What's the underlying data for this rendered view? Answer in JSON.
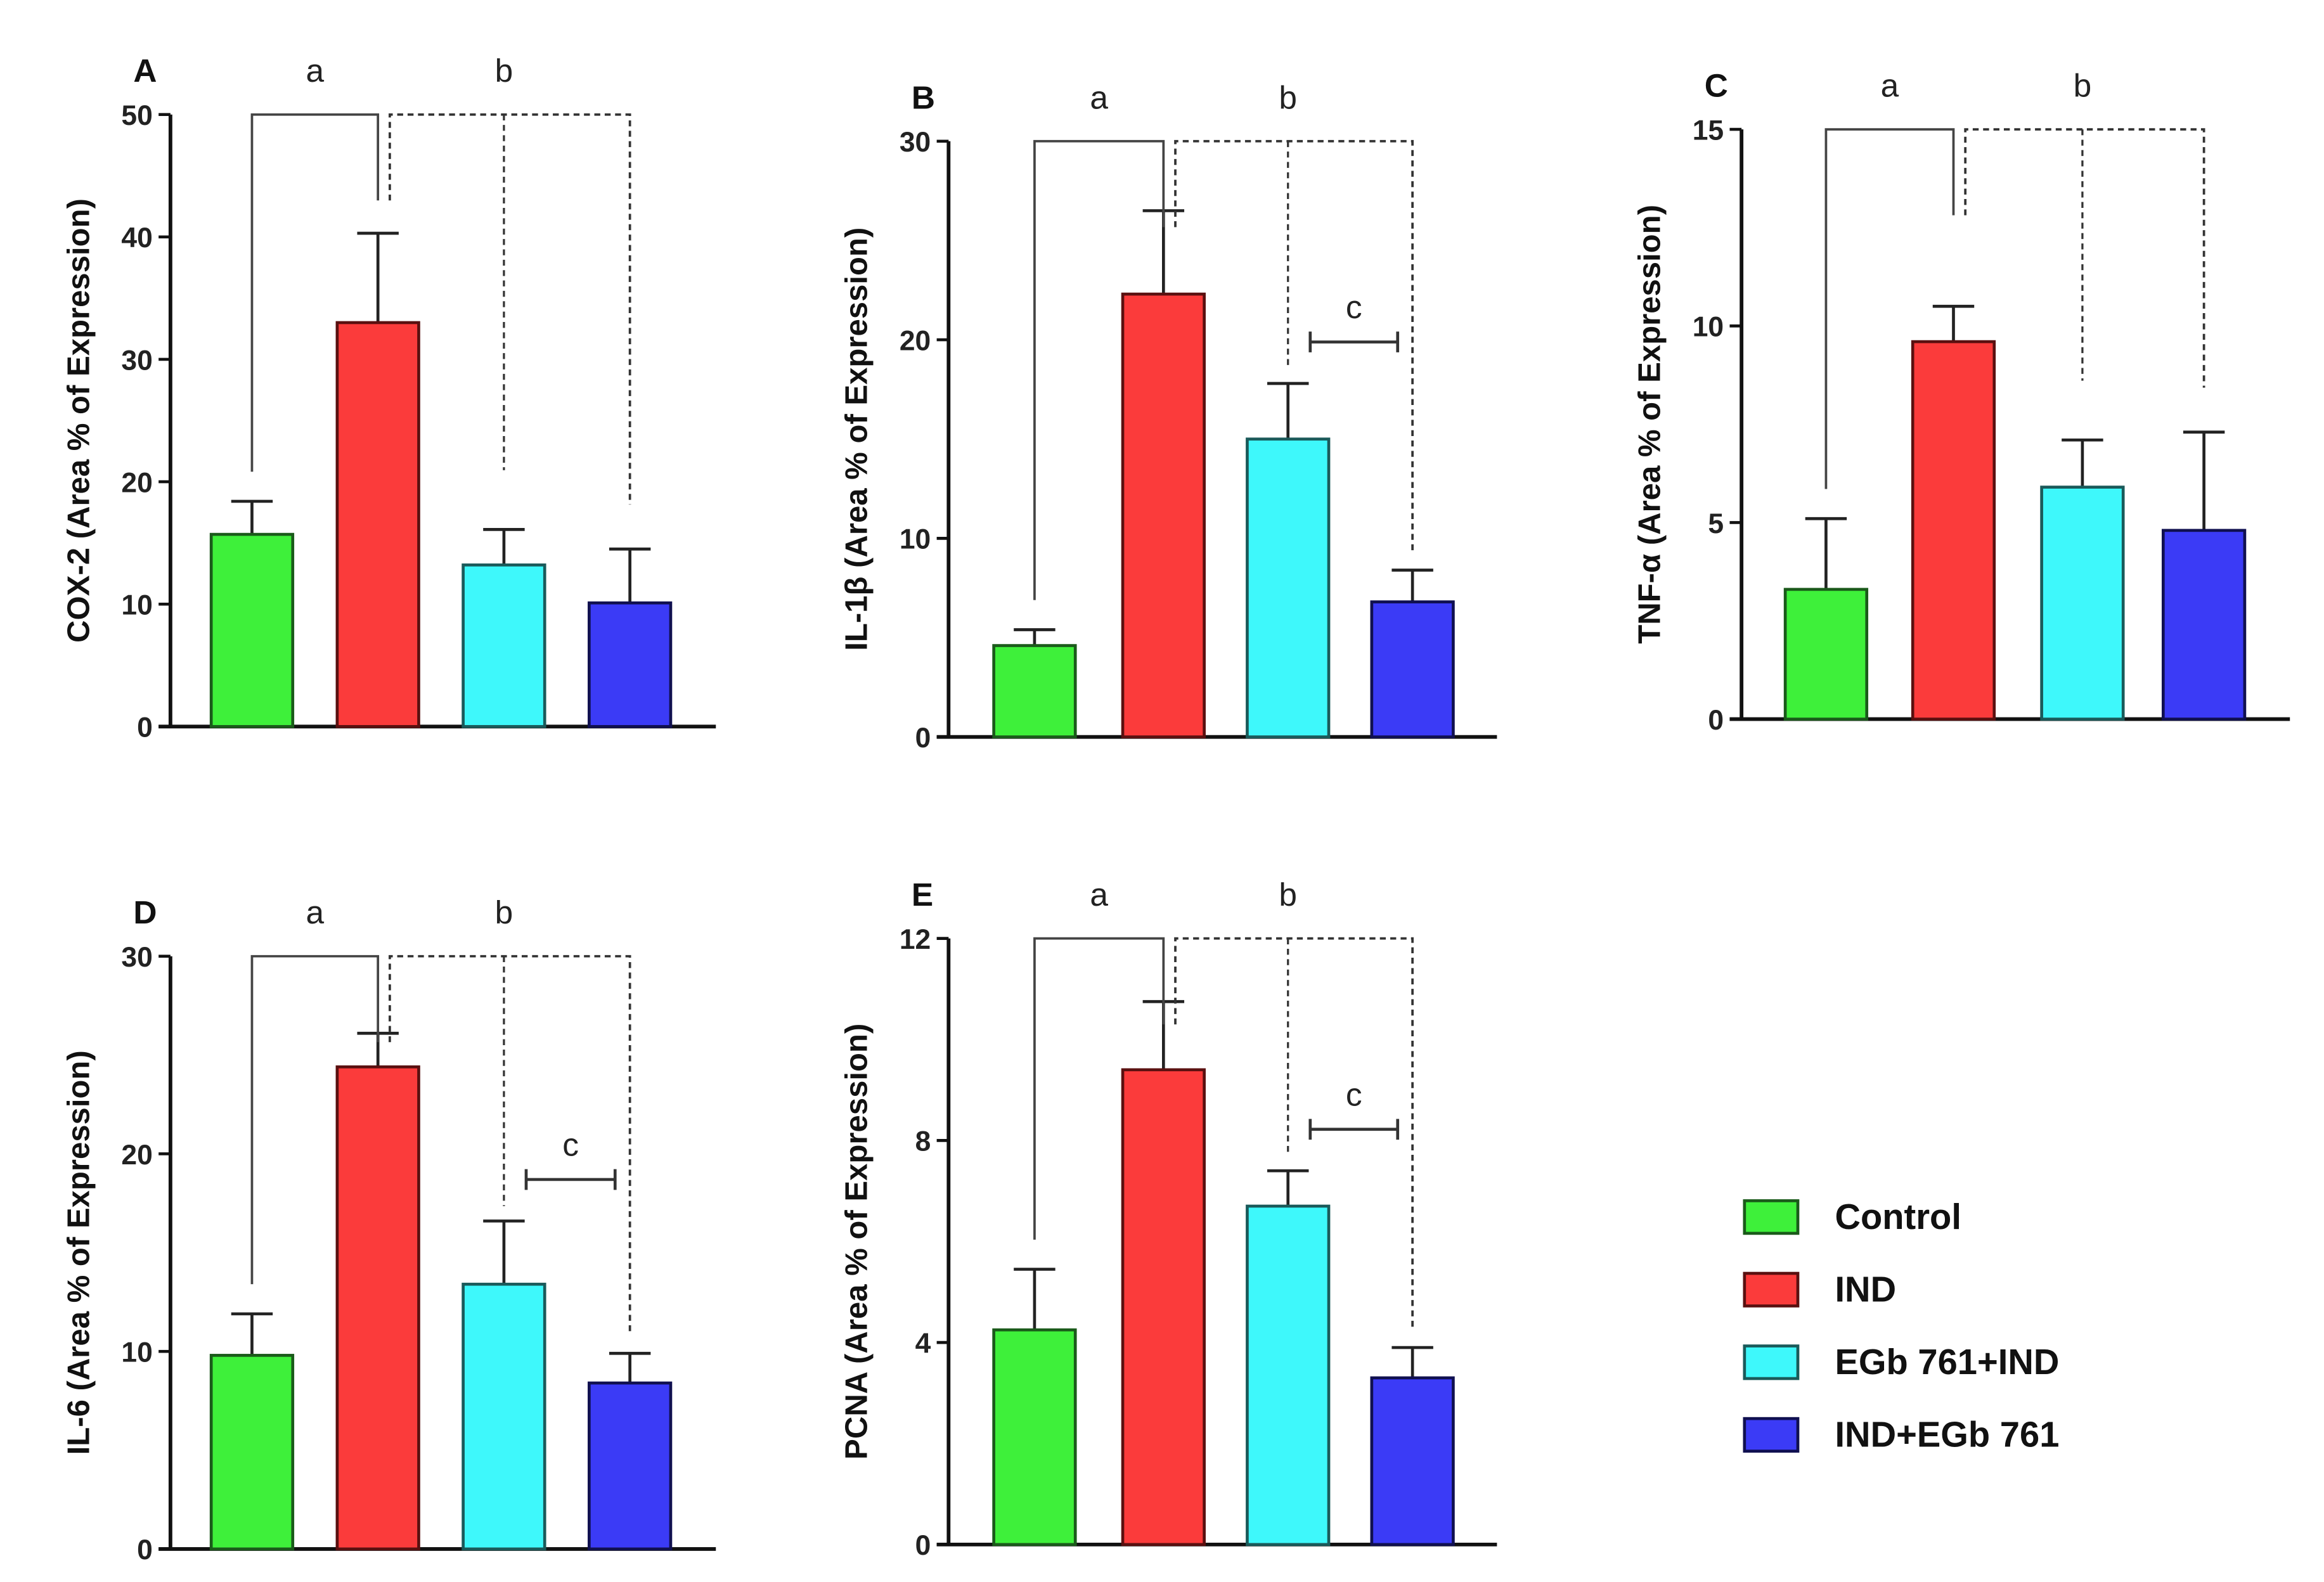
{
  "chart_data": [
    {
      "type": "bar",
      "panel": "A",
      "ylabel": "COX-2 (Area % of Expression)",
      "ylim": [
        0,
        50
      ],
      "yticks": [
        0,
        10,
        20,
        30,
        40,
        50
      ],
      "categories": [
        "Control",
        "IND",
        "EGb 761+IND",
        "IND+EGb 761"
      ],
      "values": [
        15.7,
        33.0,
        13.2,
        10.1
      ],
      "errors": [
        2.7,
        7.3,
        2.9,
        4.4
      ],
      "significance": [
        "a",
        "b"
      ]
    },
    {
      "type": "bar",
      "panel": "B",
      "ylabel": "IL-1β (Area % of Expression)",
      "ylim": [
        0,
        30
      ],
      "yticks": [
        0,
        10,
        20,
        30
      ],
      "categories": [
        "Control",
        "IND",
        "EGb 761+IND",
        "IND+EGb 761"
      ],
      "values": [
        4.6,
        22.3,
        15.0,
        6.8
      ],
      "errors": [
        0.8,
        4.2,
        2.8,
        1.6
      ],
      "significance": [
        "a",
        "b",
        "c"
      ]
    },
    {
      "type": "bar",
      "panel": "C",
      "ylabel": "TNF-α (Area % of Expression)",
      "ylim": [
        0,
        15
      ],
      "yticks": [
        0,
        5,
        10,
        15
      ],
      "categories": [
        "Control",
        "IND",
        "EGb 761+IND",
        "IND+EGb 761"
      ],
      "values": [
        3.3,
        9.6,
        5.9,
        4.8
      ],
      "errors": [
        1.8,
        0.9,
        1.2,
        2.5
      ],
      "significance": [
        "a",
        "b"
      ]
    },
    {
      "type": "bar",
      "panel": "D",
      "ylabel": "IL-6 (Area % of Expression)",
      "ylim": [
        0,
        30
      ],
      "yticks": [
        0,
        10,
        20,
        30
      ],
      "categories": [
        "Control",
        "IND",
        "EGb 761+IND",
        "IND+EGb 761"
      ],
      "values": [
        9.8,
        24.4,
        13.4,
        8.4
      ],
      "errors": [
        2.1,
        1.7,
        3.2,
        1.5
      ],
      "significance": [
        "a",
        "b",
        "c"
      ]
    },
    {
      "type": "bar",
      "panel": "E",
      "ylabel": "PCNA (Area % of Expression)",
      "ylim": [
        0,
        12
      ],
      "yticks": [
        0,
        4,
        8,
        12
      ],
      "categories": [
        "Control",
        "IND",
        "EGb 761+IND",
        "IND+EGb 761"
      ],
      "values": [
        4.25,
        9.4,
        6.7,
        3.3
      ],
      "errors": [
        1.2,
        1.35,
        0.7,
        0.6
      ],
      "significance": [
        "a",
        "b",
        "c"
      ]
    }
  ],
  "legend": {
    "placement": "bottom-right",
    "items": [
      "Control",
      "IND",
      "EGb 761+IND",
      "IND+EGb 761"
    ]
  },
  "colors": [
    "#3ef03a",
    "#fb3b3b",
    "#3ef8fb",
    "#3b3bf6"
  ],
  "edge_colors": [
    "#1a5a1a",
    "#5a1010",
    "#1a5a5a",
    "#101050"
  ]
}
